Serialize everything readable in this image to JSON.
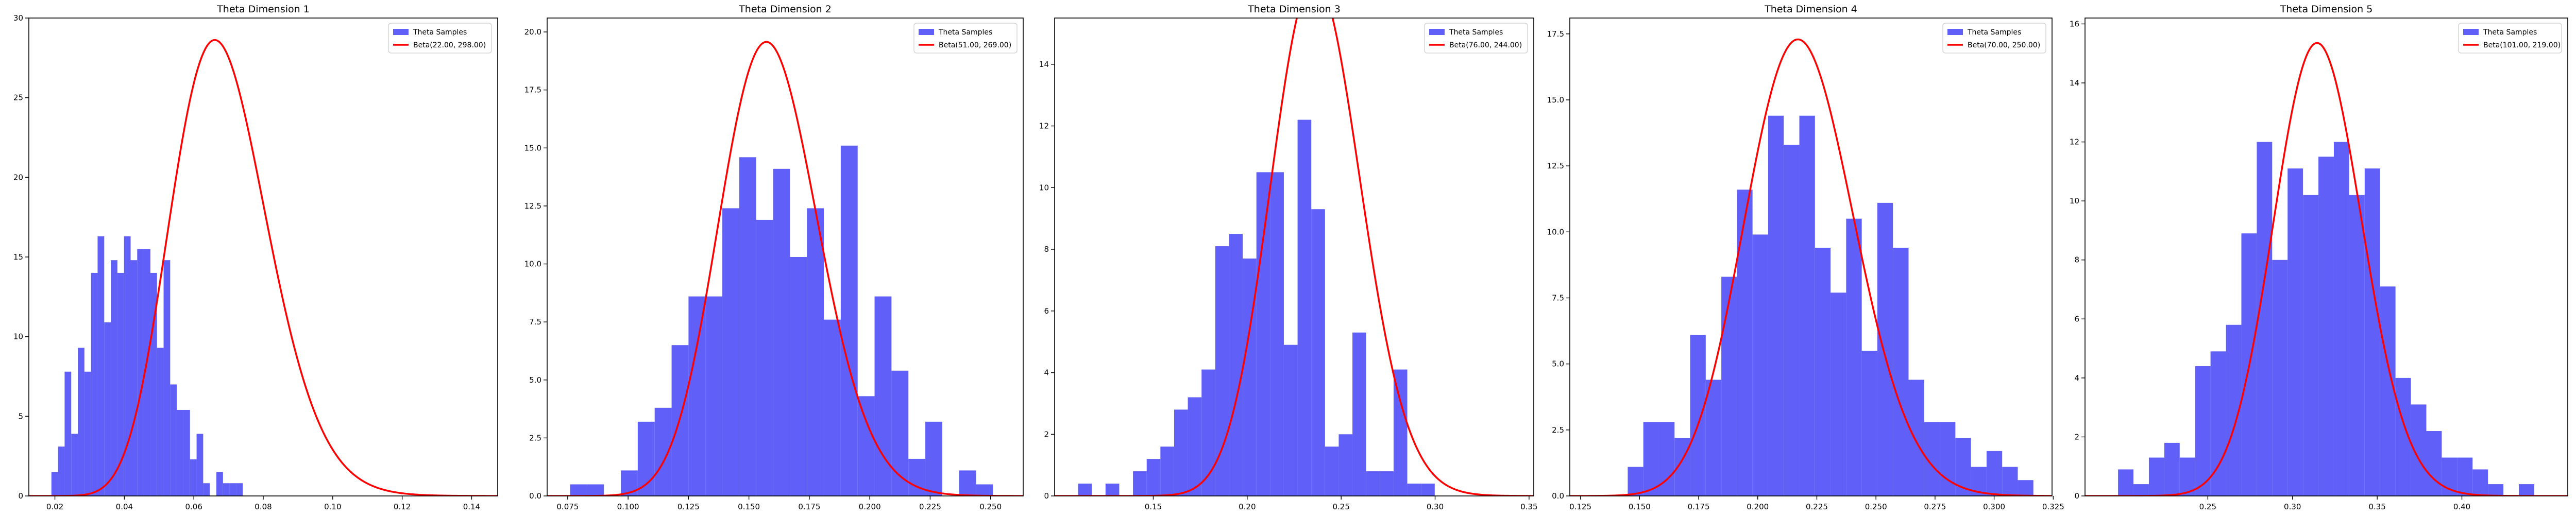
{
  "chart_data": [
    {
      "type": "bar",
      "title": "Theta Dimension 1",
      "xlim": [
        0.0125,
        0.1475
      ],
      "ylim": [
        0,
        30
      ],
      "xticks": [
        0.02,
        0.04,
        0.06,
        0.08,
        0.1,
        0.12,
        0.14
      ],
      "xtick_labels": [
        "0.02",
        "0.04",
        "0.06",
        "0.08",
        "0.10",
        "0.12",
        "0.14"
      ],
      "yticks": [
        0,
        5,
        10,
        15,
        20,
        25,
        30
      ],
      "ytick_labels": [
        "0",
        "5",
        "10",
        "15",
        "20",
        "25",
        "30"
      ],
      "legend": "top-right",
      "series": [
        {
          "name": "Theta Samples",
          "kind": "histogram",
          "color": "#6060f8",
          "bins": [
            [
              0.019,
              0.0209,
              1.5
            ],
            [
              0.0209,
              0.0228,
              3.1
            ],
            [
              0.0228,
              0.0247,
              7.8
            ],
            [
              0.0247,
              0.0266,
              3.9
            ],
            [
              0.0266,
              0.0285,
              9.3
            ],
            [
              0.0285,
              0.0304,
              7.8
            ],
            [
              0.0304,
              0.0323,
              14.0
            ],
            [
              0.0323,
              0.0342,
              16.3
            ],
            [
              0.0342,
              0.0361,
              10.9
            ],
            [
              0.0361,
              0.038,
              14.8
            ],
            [
              0.038,
              0.0399,
              14.0
            ],
            [
              0.0399,
              0.0418,
              16.3
            ],
            [
              0.0418,
              0.0437,
              14.8
            ],
            [
              0.0437,
              0.0456,
              15.5
            ],
            [
              0.0456,
              0.0475,
              15.5
            ],
            [
              0.0475,
              0.0494,
              14.0
            ],
            [
              0.0494,
              0.0513,
              9.3
            ],
            [
              0.0513,
              0.0532,
              14.8
            ],
            [
              0.0532,
              0.0551,
              7.0
            ],
            [
              0.0551,
              0.057,
              5.4
            ],
            [
              0.057,
              0.0589,
              5.4
            ],
            [
              0.0589,
              0.0608,
              2.3
            ],
            [
              0.0608,
              0.0627,
              3.9
            ],
            [
              0.0627,
              0.0646,
              0.8
            ],
            [
              0.0646,
              0.0665,
              0
            ],
            [
              0.0665,
              0.0684,
              1.5
            ],
            [
              0.0684,
              0.0703,
              0.8
            ],
            [
              0.0703,
              0.0722,
              0.8
            ],
            [
              0.0722,
              0.0741,
              0.8
            ]
          ]
        },
        {
          "name": "Beta(22.00, 298.00)",
          "kind": "pdf",
          "color": "#ff0000",
          "alpha": 22,
          "beta": 298
        }
      ]
    },
    {
      "type": "bar",
      "title": "Theta Dimension 2",
      "xlim": [
        0.0665,
        0.2635
      ],
      "ylim": [
        0,
        20.6
      ],
      "xticks": [
        0.075,
        0.1,
        0.125,
        0.15,
        0.175,
        0.2,
        0.225,
        0.25
      ],
      "xtick_labels": [
        "0.075",
        "0.100",
        "0.125",
        "0.150",
        "0.175",
        "0.200",
        "0.225",
        "0.250"
      ],
      "yticks": [
        0,
        2.5,
        5,
        7.5,
        10,
        12.5,
        15,
        17.5,
        20
      ],
      "ytick_labels": [
        "0.0",
        "2.5",
        "5.0",
        "7.5",
        "10.0",
        "12.5",
        "15.0",
        "17.5",
        "20.0"
      ],
      "legend": "top-right",
      "series": [
        {
          "name": "Theta Samples",
          "kind": "histogram",
          "color": "#6060f8",
          "bins": [
            [
              0.076,
              0.083,
              0.5
            ],
            [
              0.083,
              0.09,
              0.5
            ],
            [
              0.09,
              0.097,
              0
            ],
            [
              0.097,
              0.104,
              1.1
            ],
            [
              0.104,
              0.111,
              3.2
            ],
            [
              0.111,
              0.118,
              3.8
            ],
            [
              0.118,
              0.125,
              6.5
            ],
            [
              0.125,
              0.132,
              8.6
            ],
            [
              0.132,
              0.139,
              8.6
            ],
            [
              0.139,
              0.146,
              12.4
            ],
            [
              0.146,
              0.153,
              14.6
            ],
            [
              0.153,
              0.16,
              11.9
            ],
            [
              0.16,
              0.167,
              14.1
            ],
            [
              0.167,
              0.174,
              10.3
            ],
            [
              0.174,
              0.181,
              12.4
            ],
            [
              0.181,
              0.188,
              7.6
            ],
            [
              0.188,
              0.195,
              15.1
            ],
            [
              0.195,
              0.202,
              4.3
            ],
            [
              0.202,
              0.209,
              8.6
            ],
            [
              0.209,
              0.216,
              5.4
            ],
            [
              0.216,
              0.223,
              1.6
            ],
            [
              0.223,
              0.23,
              3.2
            ],
            [
              0.23,
              0.237,
              0
            ],
            [
              0.237,
              0.244,
              1.1
            ],
            [
              0.244,
              0.251,
              0.5
            ]
          ]
        },
        {
          "name": "Beta(51.00, 269.00)",
          "kind": "pdf",
          "color": "#ff0000",
          "alpha": 51,
          "beta": 269
        }
      ]
    },
    {
      "type": "bar",
      "title": "Theta Dimension 3",
      "xlim": [
        0.0975,
        0.3525
      ],
      "ylim": [
        0,
        15.5
      ],
      "xticks": [
        0.15,
        0.2,
        0.25,
        0.3,
        0.35
      ],
      "xtick_labels": [
        "0.15",
        "0.20",
        "0.25",
        "0.30",
        "0.35"
      ],
      "yticks": [
        0,
        2,
        4,
        6,
        8,
        10,
        12,
        14
      ],
      "ytick_labels": [
        "0",
        "2",
        "4",
        "6",
        "8",
        "10",
        "12",
        "14"
      ],
      "legend": "top-right",
      "series": [
        {
          "name": "Theta Samples",
          "kind": "histogram",
          "color": "#6060f8",
          "bins": [
            [
              0.11,
              0.1173,
              0.4
            ],
            [
              0.1173,
              0.1246,
              0
            ],
            [
              0.1246,
              0.1319,
              0.4
            ],
            [
              0.1319,
              0.1392,
              0
            ],
            [
              0.1392,
              0.1465,
              0.8
            ],
            [
              0.1465,
              0.1538,
              1.2
            ],
            [
              0.1538,
              0.1611,
              1.6
            ],
            [
              0.1611,
              0.1684,
              2.8
            ],
            [
              0.1684,
              0.1757,
              3.2
            ],
            [
              0.1757,
              0.183,
              4.1
            ],
            [
              0.183,
              0.1903,
              8.1
            ],
            [
              0.1903,
              0.1976,
              8.5
            ],
            [
              0.1976,
              0.2049,
              7.7
            ],
            [
              0.2049,
              0.2122,
              10.5
            ],
            [
              0.2122,
              0.2195,
              10.5
            ],
            [
              0.2195,
              0.2268,
              4.9
            ],
            [
              0.2268,
              0.2341,
              12.2
            ],
            [
              0.2341,
              0.2414,
              9.3
            ],
            [
              0.2414,
              0.2487,
              1.6
            ],
            [
              0.2487,
              0.256,
              2.0
            ],
            [
              0.256,
              0.2633,
              5.3
            ],
            [
              0.2633,
              0.2706,
              0.8
            ],
            [
              0.2706,
              0.2779,
              0.8
            ],
            [
              0.2779,
              0.2852,
              4.1
            ],
            [
              0.2852,
              0.2925,
              0.4
            ],
            [
              0.2925,
              0.2998,
              0.4
            ]
          ]
        },
        {
          "name": "Beta(76.00, 244.00)",
          "kind": "pdf",
          "color": "#ff0000",
          "alpha": 76,
          "beta": 244
        }
      ]
    },
    {
      "type": "bar",
      "title": "Theta Dimension 4",
      "xlim": [
        0.1205,
        0.3245
      ],
      "ylim": [
        0,
        18.1
      ],
      "xticks": [
        0.125,
        0.15,
        0.175,
        0.2,
        0.225,
        0.25,
        0.275,
        0.3,
        0.325
      ],
      "xtick_labels": [
        "0.125",
        "0.150",
        "0.175",
        "0.200",
        "0.225",
        "0.250",
        "0.275",
        "0.300",
        "0.325"
      ],
      "yticks": [
        0,
        2.5,
        5,
        7.5,
        10,
        12.5,
        15,
        17.5
      ],
      "ytick_labels": [
        "0.0",
        "2.5",
        "5.0",
        "7.5",
        "10.0",
        "12.5",
        "15.0",
        "17.5"
      ],
      "legend": "top-right",
      "series": [
        {
          "name": "Theta Samples",
          "kind": "histogram",
          "color": "#6060f8",
          "bins": [
            [
              0.145,
              0.1516,
              1.1
            ],
            [
              0.1516,
              0.1582,
              2.8
            ],
            [
              0.1582,
              0.1648,
              2.8
            ],
            [
              0.1648,
              0.1714,
              2.2
            ],
            [
              0.1714,
              0.178,
              6.1
            ],
            [
              0.178,
              0.1846,
              4.4
            ],
            [
              0.1846,
              0.1912,
              8.3
            ],
            [
              0.1912,
              0.1978,
              11.6
            ],
            [
              0.1978,
              0.2044,
              9.9
            ],
            [
              0.2044,
              0.211,
              14.4
            ],
            [
              0.211,
              0.2176,
              13.3
            ],
            [
              0.2176,
              0.2242,
              14.4
            ],
            [
              0.2242,
              0.2308,
              9.4
            ],
            [
              0.2308,
              0.2374,
              7.7
            ],
            [
              0.2374,
              0.244,
              10.5
            ],
            [
              0.244,
              0.2506,
              5.5
            ],
            [
              0.2506,
              0.2572,
              11.1
            ],
            [
              0.2572,
              0.2638,
              9.4
            ],
            [
              0.2638,
              0.2704,
              4.4
            ],
            [
              0.2704,
              0.277,
              2.8
            ],
            [
              0.277,
              0.2836,
              2.8
            ],
            [
              0.2836,
              0.2902,
              2.2
            ],
            [
              0.2902,
              0.2968,
              1.1
            ],
            [
              0.2968,
              0.3034,
              1.7
            ],
            [
              0.3034,
              0.31,
              1.1
            ],
            [
              0.31,
              0.3166,
              0.6
            ]
          ]
        },
        {
          "name": "Beta(70.00, 250.00)",
          "kind": "pdf",
          "color": "#ff0000",
          "alpha": 70,
          "beta": 250
        }
      ]
    },
    {
      "type": "bar",
      "title": "Theta Dimension 5",
      "xlim": [
        0.1775,
        0.4625
      ],
      "ylim": [
        0,
        16.2
      ],
      "xticks": [
        0.25,
        0.3,
        0.35,
        0.4
      ],
      "xtick_labels": [
        "0.25",
        "0.30",
        "0.35",
        "0.40"
      ],
      "yticks": [
        0,
        2,
        4,
        6,
        8,
        10,
        12,
        14,
        16
      ],
      "ytick_labels": [
        "0",
        "2",
        "4",
        "6",
        "8",
        "10",
        "12",
        "14",
        "16"
      ],
      "legend": "top-right",
      "series": [
        {
          "name": "Theta Samples",
          "kind": "histogram",
          "color": "#6060f8",
          "bins": [
            [
              0.197,
              0.2061,
              0.9
            ],
            [
              0.2061,
              0.2152,
              0.4
            ],
            [
              0.2152,
              0.2243,
              1.3
            ],
            [
              0.2243,
              0.2334,
              1.8
            ],
            [
              0.2334,
              0.2425,
              1.3
            ],
            [
              0.2425,
              0.2516,
              4.4
            ],
            [
              0.2516,
              0.2607,
              4.9
            ],
            [
              0.2607,
              0.2698,
              5.8
            ],
            [
              0.2698,
              0.2789,
              8.9
            ],
            [
              0.2789,
              0.288,
              12.0
            ],
            [
              0.288,
              0.2971,
              8.0
            ],
            [
              0.2971,
              0.3062,
              11.1
            ],
            [
              0.3062,
              0.3153,
              10.2
            ],
            [
              0.3153,
              0.3244,
              11.5
            ],
            [
              0.3244,
              0.3335,
              12.0
            ],
            [
              0.3335,
              0.3426,
              10.2
            ],
            [
              0.3426,
              0.3517,
              11.1
            ],
            [
              0.3517,
              0.3608,
              7.1
            ],
            [
              0.3608,
              0.3699,
              4.0
            ],
            [
              0.3699,
              0.379,
              3.1
            ],
            [
              0.379,
              0.3881,
              2.2
            ],
            [
              0.3881,
              0.3972,
              1.3
            ],
            [
              0.3972,
              0.4063,
              1.3
            ],
            [
              0.4063,
              0.4154,
              0.9
            ],
            [
              0.4154,
              0.4245,
              0.4
            ],
            [
              0.4245,
              0.4336,
              0
            ],
            [
              0.4336,
              0.4427,
              0.4
            ]
          ]
        },
        {
          "name": "Beta(101.00, 219.00)",
          "kind": "pdf",
          "color": "#ff0000",
          "alpha": 101,
          "beta": 219
        }
      ]
    }
  ]
}
